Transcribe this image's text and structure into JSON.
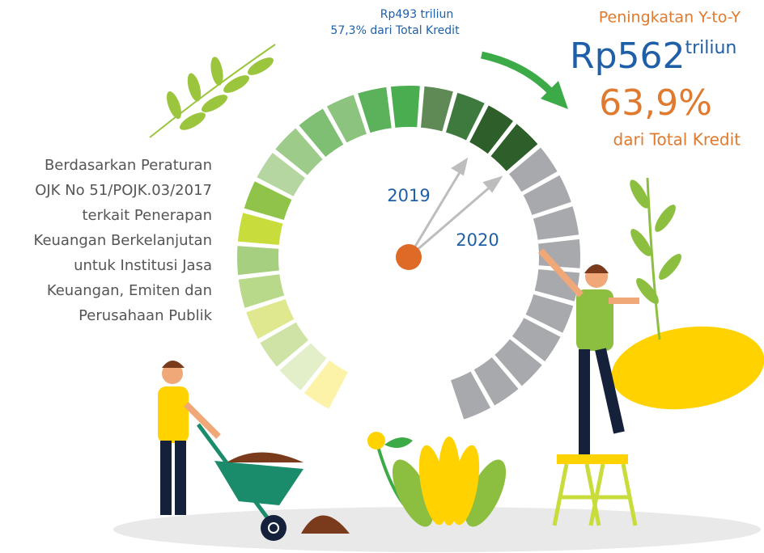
{
  "gauge": {
    "label_2019_amount": "Rp493 triliun",
    "label_2019_share": "57,3% dari Total Kredit",
    "year_a": "2019",
    "year_b": "2020"
  },
  "highlight": {
    "title": "Peningkatan Y-to-Y",
    "amount": "Rp562",
    "unit": "triliun",
    "share": "63,9%",
    "share_text": "dari Total Kredit"
  },
  "note": {
    "lines": [
      "Berdasarkan Peraturan",
      "OJK No 51/POJK.03/2017",
      "terkait Penerapan",
      "Keuangan Berkelanjutan",
      "untuk Institusi Jasa",
      "Keuangan, Emiten dan",
      "Perusahaan Publik"
    ]
  }
}
